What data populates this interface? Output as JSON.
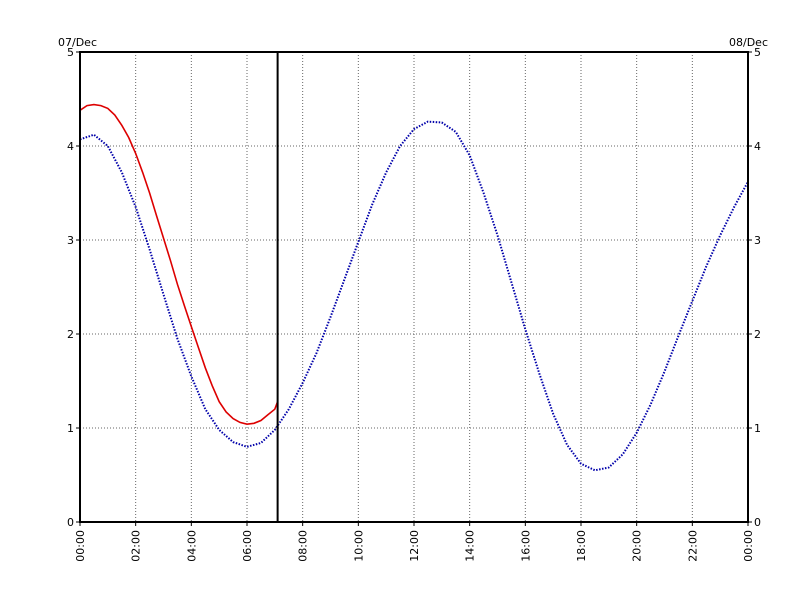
{
  "chart_data": {
    "type": "line",
    "date_labels": {
      "left": "07/Dec",
      "right": "08/Dec"
    },
    "x_tick_labels": [
      "00:00",
      "02:00",
      "04:00",
      "06:00",
      "08:00",
      "10:00",
      "12:00",
      "14:00",
      "16:00",
      "18:00",
      "20:00",
      "22:00",
      "00:00"
    ],
    "y_tick_labels": [
      "0",
      "1",
      "2",
      "3",
      "4",
      "5"
    ],
    "xlim_hours": [
      0,
      24
    ],
    "ylim": [
      0,
      5
    ],
    "grid": true,
    "current_time_hours": 7.1,
    "series": [
      {
        "color": "#0000aa",
        "style": "dotted",
        "x_hours": [
          0,
          0.5,
          1,
          1.5,
          2,
          2.5,
          3,
          3.5,
          4,
          4.5,
          5,
          5.5,
          6,
          6.5,
          7,
          7.5,
          8,
          8.5,
          9,
          9.5,
          10,
          10.5,
          11,
          11.5,
          12,
          12.5,
          13,
          13.5,
          14,
          14.5,
          15,
          15.5,
          16,
          16.5,
          17,
          17.5,
          18,
          18.5,
          19,
          19.5,
          20,
          20.5,
          21,
          21.5,
          22,
          22.5,
          23,
          23.5,
          24
        ],
        "values": [
          4.07,
          4.12,
          4.0,
          3.72,
          3.35,
          2.9,
          2.42,
          1.95,
          1.55,
          1.2,
          0.98,
          0.85,
          0.8,
          0.84,
          0.98,
          1.2,
          1.48,
          1.8,
          2.18,
          2.58,
          2.98,
          3.38,
          3.72,
          4.0,
          4.18,
          4.26,
          4.25,
          4.15,
          3.9,
          3.5,
          3.05,
          2.55,
          2.05,
          1.58,
          1.15,
          0.82,
          0.62,
          0.55,
          0.58,
          0.72,
          0.95,
          1.25,
          1.6,
          1.98,
          2.35,
          2.72,
          3.05,
          3.35,
          3.62
        ]
      },
      {
        "color": "#dd0000",
        "style": "solid",
        "x_hours": [
          0,
          0.25,
          0.5,
          0.75,
          1,
          1.25,
          1.5,
          1.75,
          2,
          2.25,
          2.5,
          2.75,
          3,
          3.25,
          3.5,
          3.75,
          4,
          4.25,
          4.5,
          4.75,
          5,
          5.25,
          5.5,
          5.75,
          6,
          6.25,
          6.5,
          6.75,
          7,
          7.1
        ],
        "values": [
          4.38,
          4.43,
          4.44,
          4.43,
          4.4,
          4.33,
          4.22,
          4.09,
          3.92,
          3.72,
          3.5,
          3.26,
          3.02,
          2.78,
          2.53,
          2.3,
          2.08,
          1.86,
          1.64,
          1.45,
          1.28,
          1.17,
          1.1,
          1.06,
          1.04,
          1.05,
          1.08,
          1.14,
          1.2,
          1.28
        ]
      }
    ]
  }
}
